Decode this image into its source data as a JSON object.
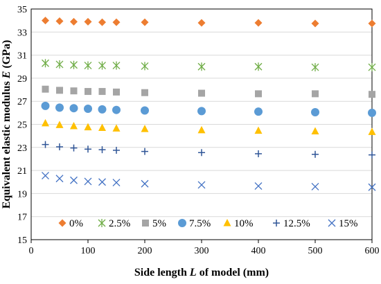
{
  "chart_data": {
    "type": "scatter",
    "xlabel_prefix": "Side length ",
    "xlabel_var": "L",
    "xlabel_suffix": " of model (mm)",
    "ylabel_prefix": "Equivalent elastic modulus ",
    "ylabel_var": "E",
    "ylabel_suffix": " (GPa)",
    "xlim": [
      0,
      600
    ],
    "ylim": [
      15,
      35
    ],
    "xticks": [
      0,
      100,
      200,
      300,
      400,
      500,
      600
    ],
    "yticks": [
      15,
      17,
      19,
      21,
      23,
      25,
      27,
      29,
      31,
      33,
      35
    ],
    "grid": "horizontal",
    "legend_position": "bottom",
    "x": [
      25,
      50,
      75,
      100,
      125,
      150,
      200,
      300,
      400,
      500,
      600
    ],
    "series": [
      {
        "name": "0%",
        "marker": "diamond",
        "color": "#ED7D31",
        "values": [
          34.0,
          33.95,
          33.9,
          33.9,
          33.85,
          33.85,
          33.85,
          33.8,
          33.8,
          33.75,
          33.75
        ]
      },
      {
        "name": "2.5%",
        "marker": "asterisk",
        "color": "#70AD47",
        "values": [
          30.3,
          30.2,
          30.15,
          30.1,
          30.1,
          30.1,
          30.05,
          30.0,
          30.0,
          29.95,
          29.95
        ]
      },
      {
        "name": "5%",
        "marker": "square",
        "color": "#A5A5A5",
        "values": [
          28.05,
          27.95,
          27.9,
          27.85,
          27.85,
          27.8,
          27.75,
          27.7,
          27.65,
          27.65,
          27.6
        ]
      },
      {
        "name": "7.5%",
        "marker": "circle",
        "color": "#5B9BD5",
        "values": [
          26.6,
          26.45,
          26.4,
          26.35,
          26.3,
          26.25,
          26.2,
          26.15,
          26.1,
          26.05,
          26.0
        ]
      },
      {
        "name": "10%",
        "marker": "triangle",
        "color": "#FFC000",
        "values": [
          25.1,
          24.95,
          24.85,
          24.75,
          24.7,
          24.65,
          24.6,
          24.5,
          24.45,
          24.4,
          24.35
        ]
      },
      {
        "name": "12.5%",
        "marker": "plus",
        "color": "#2F5597",
        "values": [
          23.25,
          23.05,
          22.95,
          22.85,
          22.8,
          22.75,
          22.65,
          22.55,
          22.45,
          22.4,
          22.35
        ]
      },
      {
        "name": "15%",
        "marker": "x",
        "color": "#4472C4",
        "values": [
          20.55,
          20.3,
          20.15,
          20.05,
          20.0,
          19.95,
          19.85,
          19.75,
          19.65,
          19.6,
          19.55
        ]
      }
    ]
  }
}
